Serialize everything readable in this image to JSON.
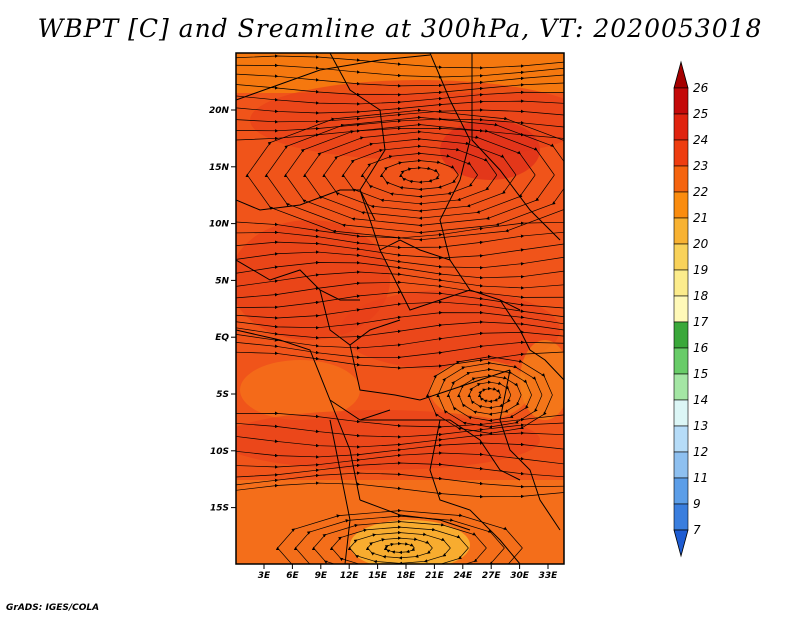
{
  "title": "WBPT [C] and Sreamline at 300hPa, VT: 2020053018",
  "credit": "GrADS: IGES/COLA",
  "map": {
    "lat_ticks": [
      "20N",
      "15N",
      "10N",
      "5N",
      "EQ",
      "5S",
      "10S",
      "15S"
    ],
    "lon_ticks": [
      "3E",
      "6E",
      "9E",
      "12E",
      "15E",
      "18E",
      "21E",
      "24E",
      "27E",
      "30E",
      "33E"
    ]
  },
  "colorbar": {
    "labels": [
      "26",
      "25",
      "24",
      "23",
      "22",
      "21",
      "20",
      "19",
      "18",
      "17",
      "16",
      "15",
      "14",
      "13",
      "12",
      "11",
      "9",
      "7"
    ],
    "colors": [
      "#a50000",
      "#c40a0a",
      "#e0230f",
      "#ee3d10",
      "#f5640f",
      "#fa8c0f",
      "#f8b232",
      "#f9d25a",
      "#fcec8c",
      "#fff9b8",
      "#3aa83a",
      "#68cc68",
      "#a4e6a4",
      "#dcf6f6",
      "#b6dcf8",
      "#8ec0f0",
      "#5c9ee8",
      "#3a7ede",
      "#1e5cd2"
    ]
  }
}
